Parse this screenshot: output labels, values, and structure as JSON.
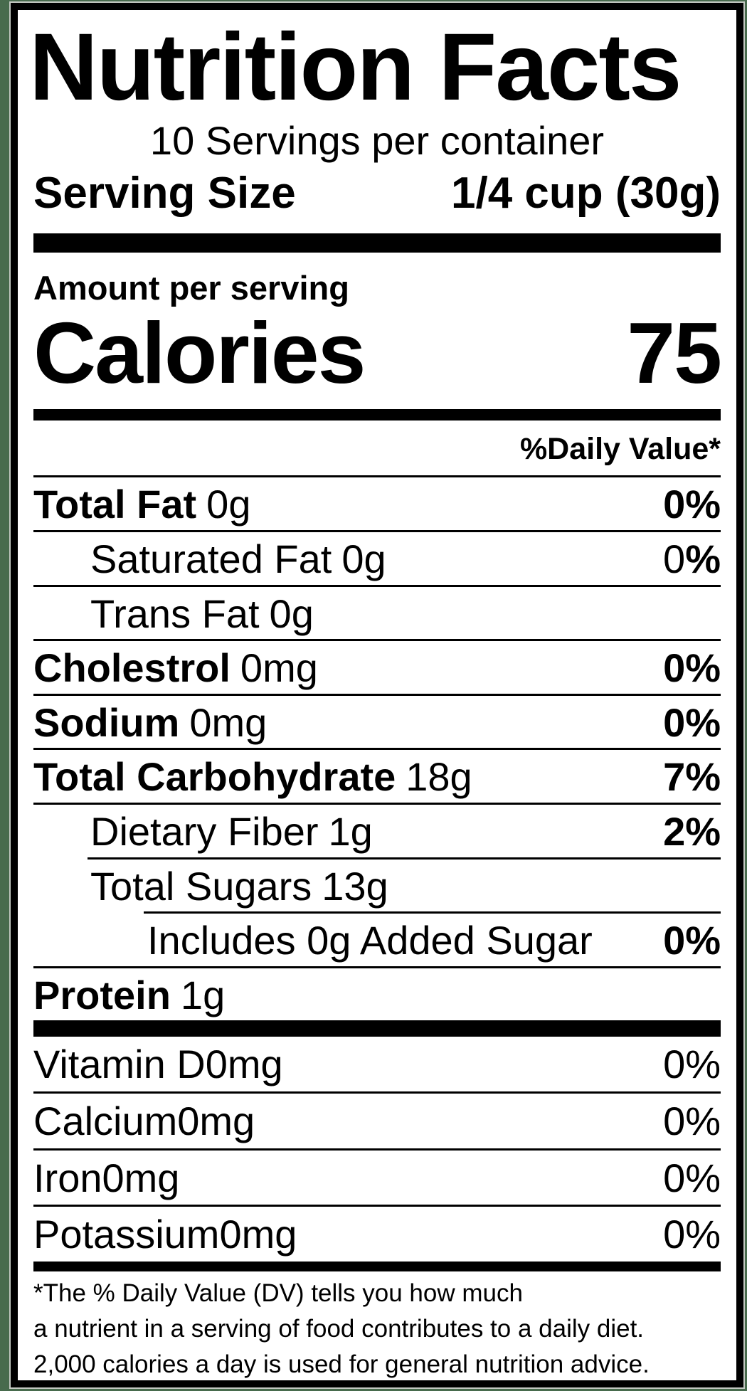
{
  "nutrition_label": {
    "title": "Nutrition Facts",
    "servings_per_container": "10 Servings per container",
    "serving_size": {
      "label": "Serving Size",
      "value": "1/4 cup (30g)"
    },
    "amount_per_serving": "Amount per serving",
    "calories": {
      "label": "Calories",
      "value": "75"
    },
    "daily_value_header": "%Daily Value*",
    "nutrients": [
      {
        "name": "Total Fat",
        "amount": "0g",
        "daily_value": "0%"
      },
      {
        "name": "Saturated Fat",
        "amount": "0g",
        "daily_value_number": "0",
        "daily_value_percent_sign": "%"
      },
      {
        "name": "Trans Fat",
        "amount": "0g",
        "daily_value": ""
      },
      {
        "name": "Cholestrol",
        "amount": "0mg",
        "daily_value": "0%"
      },
      {
        "name": "Sodium",
        "amount": "0mg",
        "daily_value": "0%"
      },
      {
        "name": "Total Carbohydrate",
        "amount": "18g",
        "daily_value": "7%"
      },
      {
        "name": "Dietary Fiber",
        "amount": "1g",
        "daily_value": "2%"
      },
      {
        "name": "Total Sugars",
        "amount": "13g",
        "daily_value": ""
      },
      {
        "name": "Includes 0g Added Sugar",
        "amount": "",
        "daily_value": "0%"
      },
      {
        "name": "Protein",
        "amount": "1g",
        "daily_value": ""
      }
    ],
    "micronutrients": [
      {
        "name": "Vitamin D",
        "amount": "0mg",
        "daily_value": "0%"
      },
      {
        "name": "Calcium",
        "amount": "0mg",
        "daily_value": "0%"
      },
      {
        "name": "Iron",
        "amount": "0mg",
        "daily_value": "0%"
      },
      {
        "name": "Potassium",
        "amount": "0mg",
        "daily_value": "0%"
      }
    ],
    "footnote_lines": [
      "*The % Daily Value (DV) tells you how much",
      "a nutrient in a serving of food contributes to a daily diet.",
      "2,000 calories a day is used for general nutrition advice."
    ],
    "colors": {
      "background_green": "#486B4D",
      "label_background": "#FFFFFF",
      "text": "#000000"
    }
  }
}
